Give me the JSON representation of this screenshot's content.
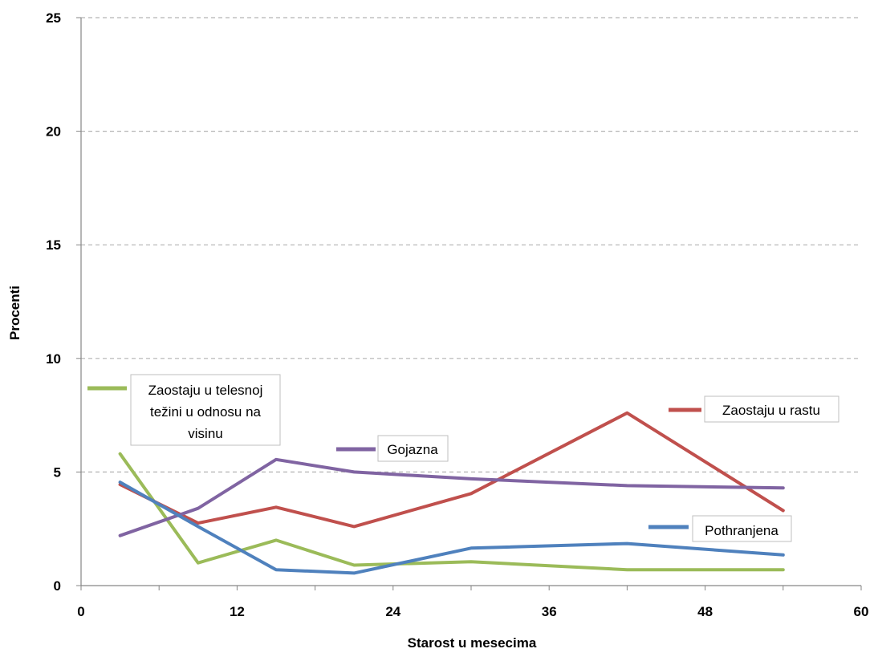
{
  "chart_data": {
    "type": "line",
    "title": "",
    "xlabel": "Starost u mesecima",
    "ylabel": "Procenti",
    "xlim": [
      0,
      60
    ],
    "ylim": [
      0,
      25
    ],
    "xticks": [
      0,
      12,
      24,
      36,
      48,
      60
    ],
    "yticks": [
      0,
      5,
      10,
      15,
      20,
      25
    ],
    "grid": "horizontal dashed",
    "series": [
      {
        "name": "Zaostaju u telesnoj težini u odnosu na visinu",
        "label_lines": [
          "Zaostaju u telesnoj",
          "težini u odnosu na",
          "visinu"
        ],
        "color": "#9bbb59",
        "x": [
          3,
          9,
          15,
          21,
          30,
          42,
          54
        ],
        "y": [
          5.8,
          1.0,
          2.0,
          0.9,
          1.05,
          0.7,
          0.7
        ]
      },
      {
        "name": "Zaostaju u rastu",
        "label_lines": [
          "Zaostaju u rastu"
        ],
        "color": "#c0504d",
        "x": [
          3,
          9,
          15,
          21,
          30,
          42,
          54
        ],
        "y": [
          4.45,
          2.75,
          3.45,
          2.6,
          4.05,
          7.6,
          3.3
        ]
      },
      {
        "name": "Gojazna",
        "label_lines": [
          "Gojazna"
        ],
        "color": "#8064a2",
        "x": [
          3,
          9,
          15,
          21,
          30,
          42,
          54
        ],
        "y": [
          2.2,
          3.4,
          5.55,
          5.0,
          4.7,
          4.4,
          4.3
        ]
      },
      {
        "name": "Pothranjena",
        "label_lines": [
          "Pothranjena"
        ],
        "color": "#4f81bd",
        "x": [
          3,
          9,
          15,
          21,
          30,
          42,
          54
        ],
        "y": [
          4.55,
          2.6,
          0.7,
          0.55,
          1.65,
          1.85,
          1.35
        ]
      }
    ]
  }
}
